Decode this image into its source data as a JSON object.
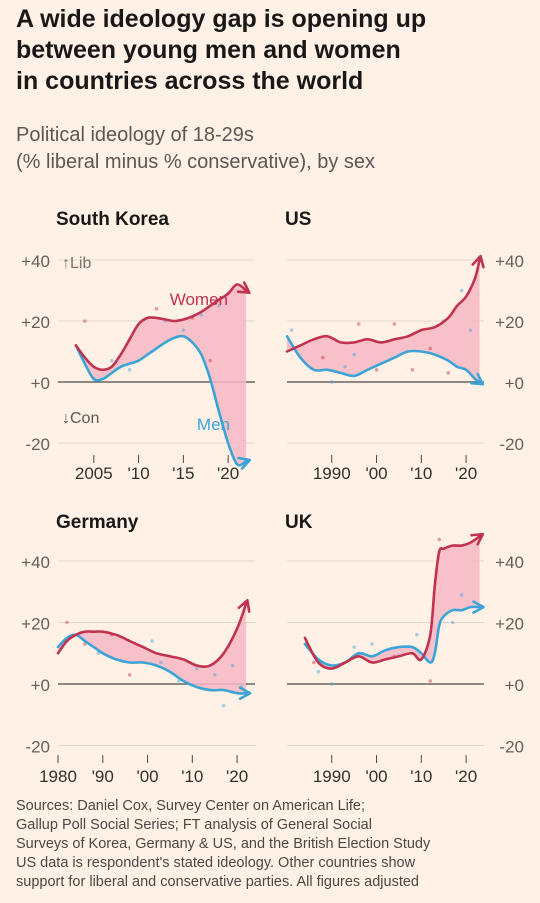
{
  "title_lines": [
    "A wide ideology gap is opening up",
    "between young men and women",
    "in countries across the world"
  ],
  "subtitle_lines": [
    "Political ideology of 18-29s",
    "(% liberal minus % conservative), by sex"
  ],
  "source_lines": [
    "Sources: Daniel Cox, Survey Center on American Life;",
    "Gallup Poll Social Series; FT analysis of General Social",
    "Surveys of Korea, Germany & US, and the British Election Study",
    "US data is respondent's stated ideology. Other countries show",
    "support for liberal and conservative parties. All figures adjusted"
  ],
  "colors": {
    "background": "#fff1e5",
    "women": "#c0334e",
    "men": "#3ba3d6",
    "gap_fill": "#f7b8c6",
    "axis": "#5c5754",
    "grid": "#e3d6cb"
  },
  "chart_data": [
    {
      "type": "line",
      "title": "South Korea",
      "xlim": [
        2001,
        2023
      ],
      "ylim": [
        -20,
        40
      ],
      "y_ticks": [
        -20,
        0,
        20,
        40
      ],
      "y_tick_labels": [
        "-20",
        "+0",
        "+20",
        "+40"
      ],
      "x_ticks": [
        2005,
        2010,
        2015,
        2020
      ],
      "x_tick_labels": [
        "2005",
        "'10",
        "'15",
        "'20"
      ],
      "annotations": {
        "lib": "↑Lib",
        "con": "↓Con"
      },
      "series": [
        {
          "name": "Women",
          "x": [
            2003,
            2004,
            2005,
            2006,
            2007,
            2008,
            2009,
            2010,
            2011,
            2012,
            2013,
            2014,
            2015,
            2016,
            2017,
            2018,
            2019,
            2020,
            2021,
            2022
          ],
          "y": [
            12,
            8,
            5,
            4,
            5,
            9,
            14,
            19,
            21,
            21,
            20.5,
            20,
            20.5,
            21.5,
            23,
            25,
            27,
            29,
            32,
            30
          ]
        },
        {
          "name": "Men",
          "x": [
            2003,
            2004,
            2005,
            2006,
            2007,
            2008,
            2009,
            2010,
            2011,
            2012,
            2013,
            2014,
            2015,
            2016,
            2017,
            2018,
            2019,
            2020,
            2021,
            2022
          ],
          "y": [
            12,
            6,
            1,
            1,
            3,
            5,
            6,
            7,
            9,
            11,
            13,
            14.5,
            15,
            13,
            9,
            1,
            -10,
            -20,
            -27,
            -26
          ]
        }
      ],
      "scatter_points": [
        {
          "x": 2004,
          "y": 20
        },
        {
          "x": 2005,
          "y": 1
        },
        {
          "x": 2007,
          "y": 7
        },
        {
          "x": 2009,
          "y": 4
        },
        {
          "x": 2012,
          "y": 24
        },
        {
          "x": 2013,
          "y": 20
        },
        {
          "x": 2015,
          "y": 17
        },
        {
          "x": 2016,
          "y": 21
        },
        {
          "x": 2017,
          "y": 22
        },
        {
          "x": 2018,
          "y": 7
        },
        {
          "x": 2019,
          "y": 25
        },
        {
          "x": 2020,
          "y": 29
        }
      ]
    },
    {
      "type": "line",
      "title": "US",
      "xlim": [
        1980,
        2024
      ],
      "ylim": [
        -20,
        40
      ],
      "y_ticks": [
        -20,
        0,
        20,
        40
      ],
      "y_tick_labels": [
        "-20",
        "+0",
        "+20",
        "+40"
      ],
      "x_ticks": [
        1990,
        2000,
        2010,
        2020
      ],
      "x_tick_labels": [
        "1990",
        "'00",
        "'10",
        "'20"
      ],
      "series": [
        {
          "name": "Women",
          "x": [
            1980,
            1983,
            1986,
            1989,
            1992,
            1995,
            1998,
            2001,
            2004,
            2007,
            2010,
            2013,
            2016,
            2018,
            2020,
            2022,
            2023
          ],
          "y": [
            10,
            12,
            14,
            15,
            13,
            13,
            14,
            13,
            14,
            15,
            17,
            18,
            21,
            25,
            28,
            34,
            40
          ]
        },
        {
          "name": "Men",
          "x": [
            1980,
            1983,
            1986,
            1989,
            1992,
            1995,
            1998,
            2001,
            2004,
            2007,
            2010,
            2013,
            2016,
            2018,
            2020,
            2022,
            2023
          ],
          "y": [
            15,
            8,
            4,
            4,
            3,
            2,
            4,
            6,
            8,
            10,
            10,
            9,
            7,
            5,
            4,
            1,
            0
          ]
        }
      ],
      "scatter_points": [
        {
          "x": 1981,
          "y": 17
        },
        {
          "x": 1988,
          "y": 8
        },
        {
          "x": 1990,
          "y": 0
        },
        {
          "x": 1993,
          "y": 5
        },
        {
          "x": 1995,
          "y": 9
        },
        {
          "x": 1996,
          "y": 19
        },
        {
          "x": 2000,
          "y": 4
        },
        {
          "x": 2004,
          "y": 19
        },
        {
          "x": 2008,
          "y": 4
        },
        {
          "x": 2012,
          "y": 11
        },
        {
          "x": 2015,
          "y": 20
        },
        {
          "x": 2016,
          "y": 3
        },
        {
          "x": 2019,
          "y": 30
        },
        {
          "x": 2021,
          "y": 17
        }
      ]
    },
    {
      "type": "line",
      "title": "Germany",
      "xlim": [
        1980,
        2024
      ],
      "ylim": [
        -20,
        40
      ],
      "y_ticks": [
        -20,
        0,
        20,
        40
      ],
      "y_tick_labels": [
        "-20",
        "+0",
        "+20",
        "+40"
      ],
      "x_ticks": [
        1980,
        1990,
        2000,
        2010,
        2020
      ],
      "x_tick_labels": [
        "1980",
        "'90",
        "'00",
        "'10",
        "'20"
      ],
      "series": [
        {
          "name": "Women",
          "x": [
            1980,
            1982,
            1984,
            1986,
            1988,
            1990,
            1993,
            1996,
            1999,
            2002,
            2005,
            2008,
            2011,
            2014,
            2017,
            2020,
            2022
          ],
          "y": [
            10,
            14,
            16,
            17,
            17,
            17,
            16,
            14,
            12,
            10,
            9,
            8,
            6,
            6,
            10,
            18,
            26
          ]
        },
        {
          "name": "Men",
          "x": [
            1980,
            1982,
            1984,
            1986,
            1988,
            1990,
            1993,
            1996,
            1999,
            2002,
            2005,
            2008,
            2011,
            2014,
            2017,
            2020,
            2022
          ],
          "y": [
            12,
            15,
            16,
            14,
            12,
            10,
            8,
            7,
            7,
            6,
            4,
            1,
            -1,
            -2,
            -2,
            -3,
            -3
          ]
        }
      ],
      "scatter_points": [
        {
          "x": 1982,
          "y": 20
        },
        {
          "x": 1986,
          "y": 13
        },
        {
          "x": 1989,
          "y": 10
        },
        {
          "x": 1992,
          "y": 16
        },
        {
          "x": 1996,
          "y": 3
        },
        {
          "x": 2001,
          "y": 14
        },
        {
          "x": 2003,
          "y": 7
        },
        {
          "x": 2007,
          "y": 1
        },
        {
          "x": 2011,
          "y": 5
        },
        {
          "x": 2015,
          "y": 3
        },
        {
          "x": 2017,
          "y": -7
        },
        {
          "x": 2019,
          "y": 6
        },
        {
          "x": 2021,
          "y": -1
        }
      ]
    },
    {
      "type": "line",
      "title": "UK",
      "xlim": [
        1980,
        2024
      ],
      "ylim": [
        -20,
        40
      ],
      "y_ticks": [
        -20,
        0,
        20,
        40
      ],
      "y_tick_labels": [
        "-20",
        "+0",
        "+20",
        "+40"
      ],
      "x_ticks": [
        1990,
        2000,
        2010,
        2020
      ],
      "x_tick_labels": [
        "1990",
        "'00",
        "'10",
        "'20"
      ],
      "series": [
        {
          "name": "Women",
          "x": [
            1984,
            1987,
            1990,
            1993,
            1996,
            1999,
            2002,
            2005,
            2008,
            2010,
            2012,
            2013,
            2014,
            2015,
            2017,
            2019,
            2021,
            2023
          ],
          "y": [
            15,
            7,
            5,
            7,
            9,
            7,
            8,
            9,
            10,
            8,
            16,
            32,
            43,
            44,
            45,
            45,
            46,
            48
          ]
        },
        {
          "name": "Men",
          "x": [
            1984,
            1987,
            1990,
            1993,
            1996,
            1999,
            2002,
            2005,
            2008,
            2010,
            2012,
            2013,
            2014,
            2015,
            2017,
            2019,
            2021,
            2023
          ],
          "y": [
            13,
            8,
            6,
            7,
            10,
            9,
            11,
            12,
            12,
            10,
            7,
            10,
            19,
            22,
            24,
            24,
            25,
            25
          ]
        }
      ],
      "scatter_points": [
        {
          "x": 1986,
          "y": 7
        },
        {
          "x": 1987,
          "y": 4
        },
        {
          "x": 1990,
          "y": 0
        },
        {
          "x": 1995,
          "y": 12
        },
        {
          "x": 1999,
          "y": 13
        },
        {
          "x": 2004,
          "y": 9
        },
        {
          "x": 2009,
          "y": 16
        },
        {
          "x": 2012,
          "y": 1
        },
        {
          "x": 2014,
          "y": 47
        },
        {
          "x": 2017,
          "y": 20
        },
        {
          "x": 2019,
          "y": 29
        }
      ]
    }
  ]
}
